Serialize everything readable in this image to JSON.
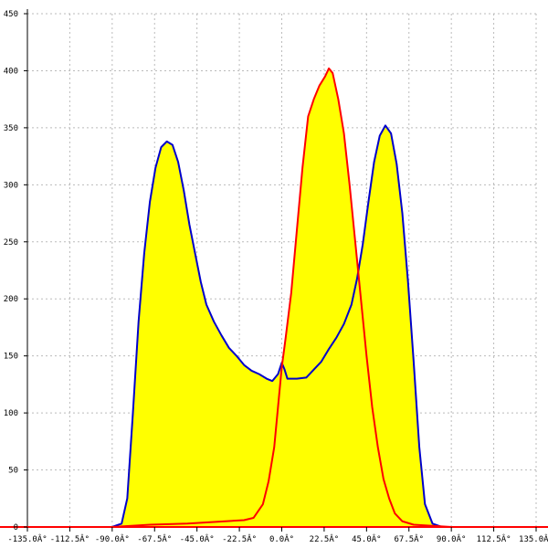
{
  "chart_data": {
    "type": "area",
    "title": "",
    "xlabel": "",
    "ylabel": "",
    "xlim": [
      -135,
      135
    ],
    "ylim": [
      0,
      450
    ],
    "grid": true,
    "x_ticks": [
      {
        "value": -135,
        "label": "-135.0Â°"
      },
      {
        "value": -112.5,
        "label": "-112.5Â°"
      },
      {
        "value": -90,
        "label": "-90.0Â°"
      },
      {
        "value": -67.5,
        "label": "-67.5Â°"
      },
      {
        "value": -45,
        "label": "-45.0Â°"
      },
      {
        "value": -22.5,
        "label": "-22.5Â°"
      },
      {
        "value": 0,
        "label": "0.0Â°"
      },
      {
        "value": 22.5,
        "label": "22.5Â°"
      },
      {
        "value": 45,
        "label": "45.0Â°"
      },
      {
        "value": 67.5,
        "label": "67.5Â°"
      },
      {
        "value": 90,
        "label": "90.0Â°"
      },
      {
        "value": 112.5,
        "label": "112.5Â°"
      },
      {
        "value": 135,
        "label": "135.0Â°"
      }
    ],
    "y_ticks": [
      {
        "value": 0,
        "label": "0"
      },
      {
        "value": 50,
        "label": "50"
      },
      {
        "value": 100,
        "label": "100"
      },
      {
        "value": 150,
        "label": "150"
      },
      {
        "value": 200,
        "label": "200"
      },
      {
        "value": 250,
        "label": "250"
      },
      {
        "value": 300,
        "label": "300"
      },
      {
        "value": 350,
        "label": "350"
      },
      {
        "value": 400,
        "label": "400"
      },
      {
        "value": 450,
        "label": "450"
      }
    ],
    "colors": {
      "fill": "#ffff00",
      "grid": "#bbbbbb",
      "axis": "#000000",
      "baseline": "#ff0000"
    },
    "series": [
      {
        "color": "#0000cc",
        "points": [
          [
            -90,
            0
          ],
          [
            -85,
            3
          ],
          [
            -82,
            25
          ],
          [
            -79,
            100
          ],
          [
            -76,
            180
          ],
          [
            -73,
            240
          ],
          [
            -70,
            285
          ],
          [
            -67,
            315
          ],
          [
            -64,
            333
          ],
          [
            -61,
            338
          ],
          [
            -58,
            335
          ],
          [
            -55,
            320
          ],
          [
            -52,
            295
          ],
          [
            -49,
            265
          ],
          [
            -46,
            240
          ],
          [
            -43,
            215
          ],
          [
            -40,
            195
          ],
          [
            -36,
            180
          ],
          [
            -32,
            168
          ],
          [
            -28,
            157
          ],
          [
            -24,
            150
          ],
          [
            -20,
            142
          ],
          [
            -16,
            137
          ],
          [
            -12,
            134
          ],
          [
            -8,
            130
          ],
          [
            -5,
            128
          ],
          [
            -2,
            134
          ],
          [
            0,
            144
          ],
          [
            1.5,
            138
          ],
          [
            3,
            130
          ],
          [
            8,
            130
          ],
          [
            13,
            131
          ],
          [
            17,
            138
          ],
          [
            21,
            145
          ],
          [
            25,
            156
          ],
          [
            29,
            166
          ],
          [
            33,
            178
          ],
          [
            37,
            195
          ],
          [
            40,
            218
          ],
          [
            43,
            248
          ],
          [
            46,
            285
          ],
          [
            49,
            320
          ],
          [
            52,
            343
          ],
          [
            55,
            352
          ],
          [
            58,
            345
          ],
          [
            61,
            318
          ],
          [
            64,
            275
          ],
          [
            67,
            215
          ],
          [
            70,
            145
          ],
          [
            73,
            70
          ],
          [
            76,
            20
          ],
          [
            80,
            3
          ],
          [
            85,
            0
          ],
          [
            90,
            0
          ]
        ]
      },
      {
        "color": "#ff0000",
        "points": [
          [
            -90,
            0
          ],
          [
            -70,
            2
          ],
          [
            -50,
            3
          ],
          [
            -40,
            4
          ],
          [
            -30,
            5
          ],
          [
            -20,
            6
          ],
          [
            -15,
            8
          ],
          [
            -10,
            20
          ],
          [
            -7,
            40
          ],
          [
            -4,
            70
          ],
          [
            -2,
            105
          ],
          [
            0,
            140
          ],
          [
            2,
            165
          ],
          [
            5,
            205
          ],
          [
            8,
            260
          ],
          [
            11,
            315
          ],
          [
            14,
            360
          ],
          [
            17,
            375
          ],
          [
            20,
            387
          ],
          [
            23,
            395
          ],
          [
            25,
            402
          ],
          [
            27,
            398
          ],
          [
            30,
            375
          ],
          [
            33,
            345
          ],
          [
            36,
            300
          ],
          [
            39,
            250
          ],
          [
            42,
            200
          ],
          [
            45,
            150
          ],
          [
            48,
            105
          ],
          [
            51,
            70
          ],
          [
            54,
            42
          ],
          [
            57,
            25
          ],
          [
            60,
            12
          ],
          [
            64,
            5
          ],
          [
            70,
            2
          ],
          [
            80,
            1
          ],
          [
            90,
            0
          ]
        ]
      }
    ]
  }
}
